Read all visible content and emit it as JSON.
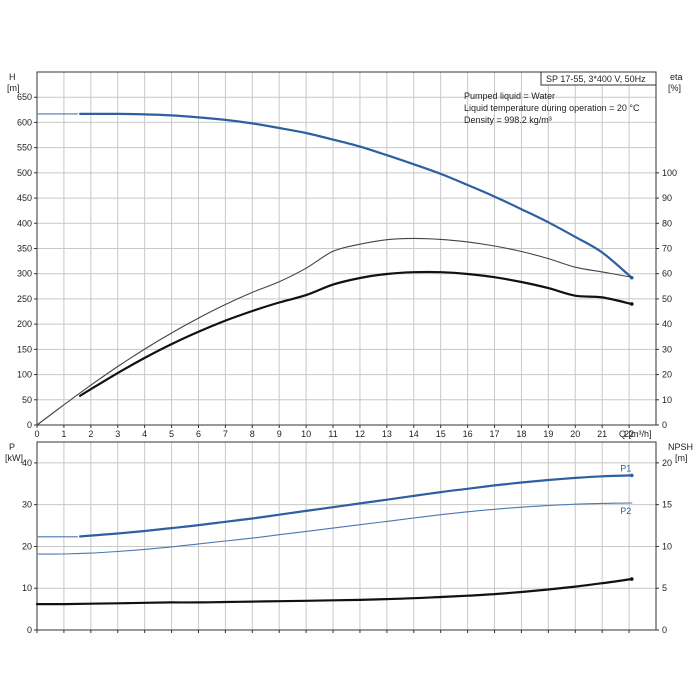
{
  "colors": {
    "blue": "#2e5fa0",
    "blue_light": "#4a78b0",
    "black": "#111111",
    "grey": "#444444",
    "grid": "#c8c8c8"
  },
  "info_box": "SP 17-55, 3*400 V, 50Hz",
  "notes": [
    "Pumped liquid = Water",
    "Liquid temperature during operation = 20 °C",
    "Density = 998.2 kg/m³"
  ],
  "chart_data": [
    {
      "type": "line",
      "xlabel": "Q [m³/h]",
      "ylabel": [
        "H",
        "[m]"
      ],
      "y2label": [
        "eta",
        "[%]"
      ],
      "xlim": [
        0,
        23
      ],
      "ylim": [
        0,
        700
      ],
      "y2lim": [
        0,
        140
      ],
      "xticks": [
        0,
        1,
        2,
        3,
        4,
        5,
        6,
        7,
        8,
        9,
        10,
        11,
        12,
        13,
        14,
        15,
        16,
        17,
        18,
        19,
        20,
        21,
        22
      ],
      "yticks": [
        0,
        50,
        100,
        150,
        200,
        250,
        300,
        350,
        400,
        450,
        500,
        550,
        600,
        650
      ],
      "y2ticks": [
        0,
        10,
        20,
        30,
        40,
        50,
        60,
        70,
        80,
        90,
        100
      ],
      "grid": true,
      "series": [
        {
          "axis": "H",
          "style": "blue_thin",
          "x": [
            0,
            0.5,
            1,
            1.5
          ],
          "y": [
            617,
            617,
            617,
            617
          ]
        },
        {
          "axis": "H",
          "style": "blue_thick",
          "x": [
            1.6,
            2,
            3,
            4,
            5,
            6,
            7,
            8,
            9,
            10,
            11,
            12,
            13,
            14,
            15,
            16,
            17,
            18,
            19,
            20,
            21,
            22.1
          ],
          "y": [
            617,
            617,
            617,
            616,
            614,
            610,
            605,
            598,
            589,
            579,
            566,
            552,
            535,
            517,
            498,
            476,
            453,
            428,
            402,
            373,
            342,
            292
          ]
        },
        {
          "axis": "eta",
          "style": "grey_thin",
          "x": [
            0,
            1,
            2,
            3,
            4,
            5,
            6,
            7,
            8,
            9,
            10,
            11,
            12,
            13,
            14,
            15,
            16,
            17,
            18,
            19,
            20,
            21,
            22.1
          ],
          "y": [
            0,
            8,
            15.8,
            23.2,
            30.1,
            36.5,
            42.4,
            47.8,
            52.6,
            56.8,
            62.2,
            68.9,
            71.7,
            73.5,
            74.0,
            73.6,
            72.6,
            71.0,
            68.8,
            66.0,
            62.6,
            60.7,
            58.6
          ]
        },
        {
          "axis": "eta",
          "style": "black_thick",
          "x": [
            1.6,
            2,
            3,
            4,
            5,
            6,
            7,
            8,
            9,
            10,
            11,
            12,
            13,
            14,
            15,
            16,
            17,
            18,
            19,
            20,
            21,
            22.1
          ],
          "y": [
            11.6,
            14.2,
            20.6,
            26.6,
            32.1,
            37.0,
            41.4,
            45.2,
            48.6,
            51.5,
            55.7,
            58.3,
            59.9,
            60.6,
            60.6,
            59.9,
            58.6,
            56.7,
            54.3,
            51.3,
            50.6,
            48.0
          ]
        }
      ]
    },
    {
      "type": "line",
      "xlabel": "",
      "ylabel": [
        "P",
        "[kW]"
      ],
      "y2label": [
        "NPSH",
        "[m]"
      ],
      "xlim": [
        0,
        23
      ],
      "ylim": [
        0,
        45
      ],
      "y2lim": [
        0,
        22.5
      ],
      "xticks": [
        0,
        1,
        2,
        3,
        4,
        5,
        6,
        7,
        8,
        9,
        10,
        11,
        12,
        13,
        14,
        15,
        16,
        17,
        18,
        19,
        20,
        21,
        22
      ],
      "yticks": [
        0,
        10,
        20,
        30,
        40
      ],
      "y2ticks": [
        0,
        5,
        10,
        15,
        20
      ],
      "grid": true,
      "series": [
        {
          "axis": "P",
          "style": "blue_thin",
          "x": [
            0,
            0.5,
            1,
            1.5
          ],
          "y": [
            22.3,
            22.3,
            22.3,
            22.3
          ]
        },
        {
          "axis": "P",
          "name": "P1",
          "style": "blue_thick",
          "x": [
            1.6,
            2,
            3,
            4,
            5,
            6,
            7,
            8,
            9,
            10,
            11,
            12,
            13,
            14,
            15,
            16,
            17,
            18,
            19,
            20,
            21,
            22.1
          ],
          "y": [
            22.4,
            22.6,
            23.1,
            23.7,
            24.4,
            25.1,
            25.9,
            26.7,
            27.6,
            28.5,
            29.4,
            30.3,
            31.2,
            32.1,
            33.0,
            33.8,
            34.6,
            35.3,
            35.9,
            36.4,
            36.8,
            37.0
          ]
        },
        {
          "axis": "P",
          "name": "P2",
          "style": "blue_thin",
          "x": [
            0,
            1,
            2,
            3,
            4,
            5,
            6,
            7,
            8,
            9,
            10,
            11,
            12,
            13,
            14,
            15,
            16,
            17,
            18,
            19,
            20,
            21,
            22.1
          ],
          "y": [
            18.2,
            18.2,
            18.4,
            18.8,
            19.3,
            19.9,
            20.6,
            21.3,
            22.0,
            22.8,
            23.6,
            24.4,
            25.2,
            26.0,
            26.8,
            27.6,
            28.3,
            28.9,
            29.4,
            29.8,
            30.1,
            30.3,
            30.4
          ]
        },
        {
          "axis": "NPSH",
          "style": "black_thick",
          "x": [
            0,
            1,
            2,
            3,
            4,
            5,
            6,
            7,
            8,
            9,
            10,
            11,
            12,
            13,
            14,
            15,
            16,
            17,
            18,
            19,
            20,
            21,
            22.1
          ],
          "y": [
            3.1,
            3.1,
            3.15,
            3.2,
            3.25,
            3.3,
            3.3,
            3.35,
            3.4,
            3.45,
            3.5,
            3.55,
            3.6,
            3.7,
            3.8,
            3.95,
            4.1,
            4.3,
            4.55,
            4.85,
            5.2,
            5.6,
            6.1
          ]
        }
      ]
    }
  ]
}
